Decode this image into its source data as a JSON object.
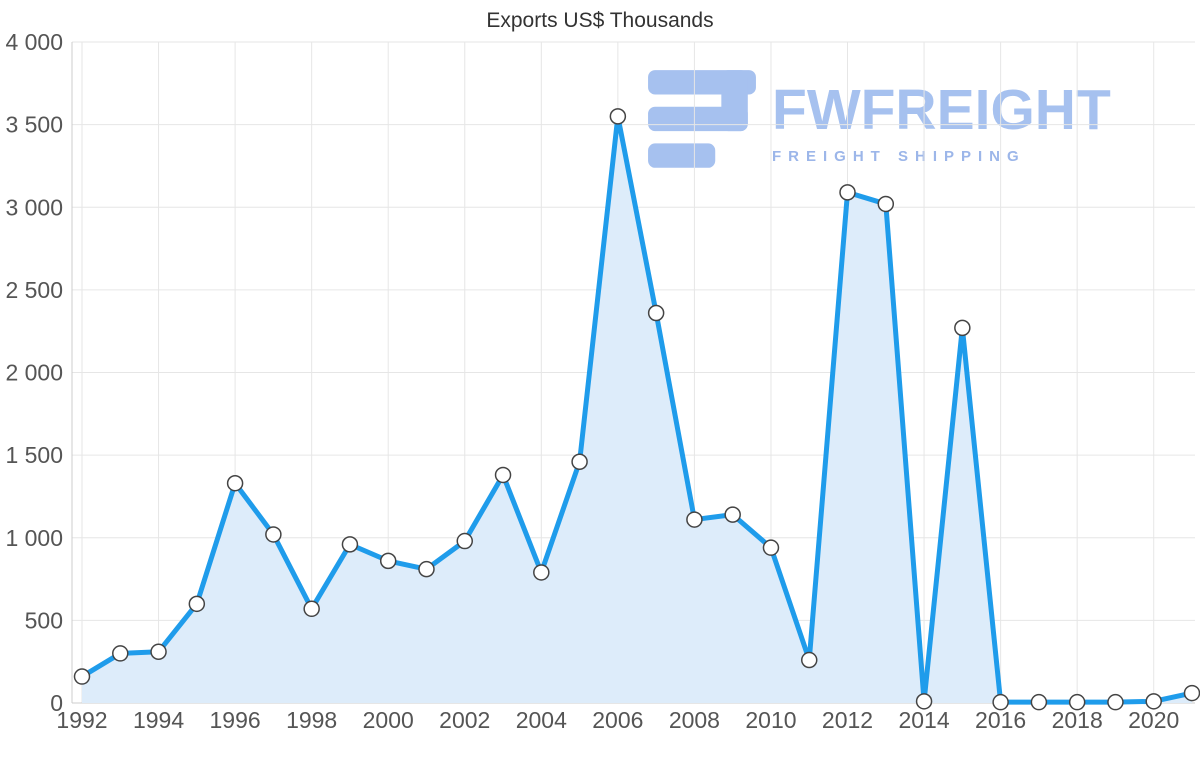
{
  "title": "Exports US$ Thousands",
  "watermark": {
    "brand": "FWFREIGHT",
    "tagline": "FREIGHT SHIPPING"
  },
  "colors": {
    "line": "#1f9ceb",
    "area_fill": "#ddecfa",
    "marker_fill": "#ffffff",
    "marker_stroke": "#444444",
    "grid": "#e6e6e6",
    "axis": "#cccccc",
    "tick_label": "#555555",
    "title": "#333333",
    "watermark_text": "#a6c1ef",
    "watermark_tagline": "#9cb6e9"
  },
  "chart_data": {
    "type": "area",
    "title": "Exports US$ Thousands",
    "xlabel": "",
    "ylabel": "",
    "x": [
      1992,
      1993,
      1994,
      1995,
      1996,
      1997,
      1998,
      1999,
      2000,
      2001,
      2002,
      2003,
      2004,
      2005,
      2006,
      2007,
      2008,
      2009,
      2010,
      2011,
      2012,
      2013,
      2014,
      2015,
      2016,
      2017,
      2018,
      2019,
      2020,
      2021
    ],
    "values": [
      160,
      300,
      310,
      600,
      1330,
      1020,
      570,
      960,
      860,
      810,
      980,
      1380,
      790,
      1460,
      3550,
      2360,
      1110,
      1140,
      940,
      260,
      3090,
      3020,
      10,
      2270,
      5,
      5,
      5,
      5,
      10,
      60
    ],
    "ylim": [
      0,
      4000
    ],
    "y_ticks": [
      0,
      500,
      1000,
      1500,
      2000,
      2500,
      3000,
      3500,
      4000
    ],
    "y_tick_labels": [
      "0",
      "500",
      "1 000",
      "1 500",
      "2 000",
      "2 500",
      "3 000",
      "3 500",
      "4 000"
    ],
    "x_tick_years": [
      1992,
      1994,
      1996,
      1998,
      2000,
      2002,
      2004,
      2006,
      2008,
      2010,
      2012,
      2014,
      2016,
      2018,
      2020
    ],
    "x_tick_labels": [
      "1992",
      "1994",
      "1996",
      "1998",
      "2000",
      "2002",
      "2004",
      "2006",
      "2008",
      "2010",
      "2012",
      "2014",
      "2016",
      "2018",
      "2020"
    ],
    "grid": true,
    "legend": "none"
  }
}
